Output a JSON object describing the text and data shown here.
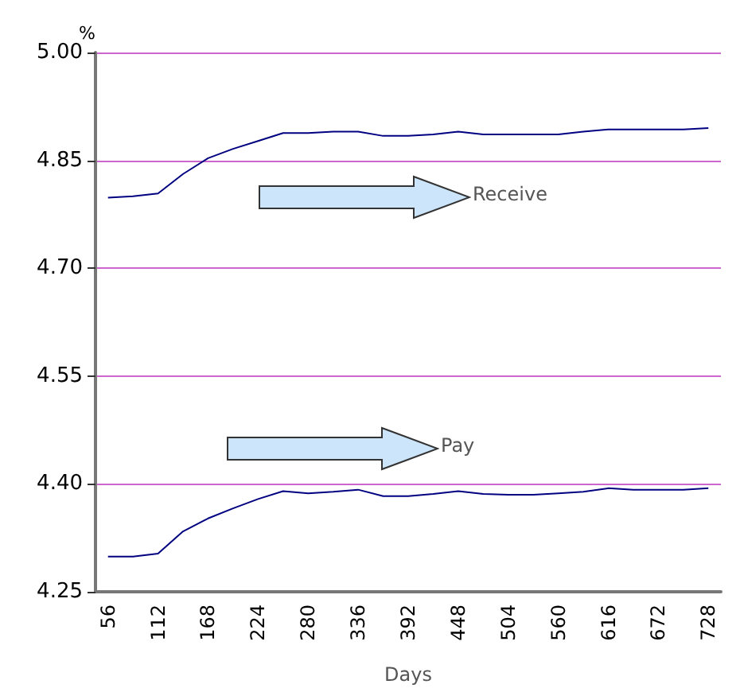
{
  "chart_data": {
    "type": "line",
    "xlabel": "Days",
    "ylabel": "%",
    "categories": [
      "56",
      null,
      "112",
      null,
      "168",
      null,
      "224",
      null,
      "280",
      null,
      "336",
      null,
      "392",
      null,
      "448",
      null,
      "504",
      null,
      "560",
      null,
      "616",
      null,
      "672",
      null,
      "728"
    ],
    "series": [
      {
        "color": "#000080",
        "values": [
          4.798,
          4.8,
          4.804,
          4.831,
          4.853,
          4.866,
          4.877,
          4.888,
          4.888,
          4.89,
          4.89,
          4.884,
          4.884,
          4.886,
          4.89,
          4.886,
          4.886,
          4.886,
          4.886,
          4.89,
          4.893,
          4.893,
          4.893,
          4.893,
          4.895
        ]
      },
      {
        "color": "#000080",
        "values": [
          4.299,
          4.299,
          4.303,
          4.334,
          4.352,
          4.366,
          4.379,
          4.39,
          4.387,
          4.389,
          4.392,
          4.383,
          4.383,
          4.386,
          4.39,
          4.386,
          4.385,
          4.385,
          4.387,
          4.389,
          4.394,
          4.392,
          4.392,
          4.392,
          4.394
        ]
      }
    ],
    "ylim": [
      4.25,
      5.0
    ],
    "yticks": [
      {
        "value": 4.25,
        "label": "4.25"
      },
      {
        "value": 4.4,
        "label": "4.40"
      },
      {
        "value": 4.55,
        "label": "4.55"
      },
      {
        "value": 4.7,
        "label": "4.70"
      },
      {
        "value": 4.85,
        "label": "4.85"
      },
      {
        "value": 5.0,
        "label": "5.00"
      }
    ],
    "grid": "y",
    "marker": "none",
    "line_style": "solid",
    "annotations": [
      "Receive",
      "Pay"
    ]
  }
}
